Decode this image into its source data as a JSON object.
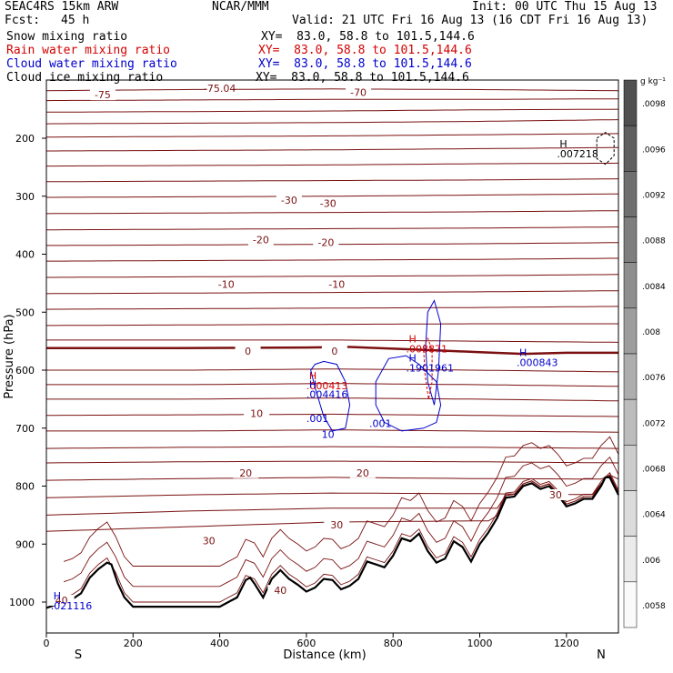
{
  "header": {
    "model": "SEAC4RS 15km ARW",
    "org": "NCAR/MMM",
    "init": "Init: 00 UTC Thu 15 Aug 13",
    "fcst_label": "Fcst:",
    "fcst_value": "45 h",
    "valid": "Valid: 21 UTC Fri 16 Aug 13 (16 CDT Fri 16 Aug 13)"
  },
  "fields": [
    {
      "name": "Snow mixing ratio",
      "xy": "XY=  83.0, 58.8 to 101.5,144.6",
      "color": "#000000"
    },
    {
      "name": "Rain water mixing ratio",
      "xy": "XY=  83.0, 58.8 to 101.5,144.6",
      "color": "#d40000"
    },
    {
      "name": "Cloud water mixing ratio",
      "xy": "XY=  83.0, 58.8 to 101.5,144.6",
      "color": "#0000cc"
    },
    {
      "name": "Cloud ice mixing ratio",
      "xy": "XY=  83.0, 58.8 to 101.5,144.6",
      "color": "#000000"
    }
  ],
  "chart_data": {
    "type": "cross-section",
    "xlabel": "Distance (km)",
    "ylabel": "Pressure (hPa)",
    "xlim": [
      0,
      1320
    ],
    "ylim": [
      1050,
      100
    ],
    "x_ticks": [
      0,
      200,
      400,
      600,
      800,
      1000,
      1200
    ],
    "y_ticks": [
      200,
      300,
      400,
      500,
      600,
      700,
      800,
      900,
      1000
    ],
    "left_endpoint": "S",
    "right_endpoint": "N",
    "colorbar": {
      "unit": "g kg⁻¹",
      "ticks": [
        ".0098",
        ".0096",
        ".0092",
        ".0088",
        ".0084",
        ".008",
        ".0076",
        ".0072",
        ".0068",
        ".0064",
        ".006",
        ".0058"
      ]
    },
    "temperature_contour_labels": [
      {
        "text": "-75",
        "x": 130,
        "p": 128
      },
      {
        "text": "-75.04",
        "x": 400,
        "p": 117
      },
      {
        "text": "-70",
        "x": 720,
        "p": 124
      },
      {
        "text": "-30",
        "x": 560,
        "p": 310
      },
      {
        "text": "-30",
        "x": 650,
        "p": 315
      },
      {
        "text": "-20",
        "x": 495,
        "p": 378
      },
      {
        "text": "-20",
        "x": 645,
        "p": 383
      },
      {
        "text": "-10",
        "x": 415,
        "p": 455
      },
      {
        "text": "-10",
        "x": 670,
        "p": 455
      },
      {
        "text": "0",
        "x": 465,
        "p": 570
      },
      {
        "text": "0",
        "x": 665,
        "p": 570
      },
      {
        "text": "10",
        "x": 485,
        "p": 678
      },
      {
        "text": "20",
        "x": 460,
        "p": 780
      },
      {
        "text": "20",
        "x": 730,
        "p": 780
      },
      {
        "text": "30",
        "x": 375,
        "p": 897
      },
      {
        "text": "30",
        "x": 670,
        "p": 870
      },
      {
        "text": "30",
        "x": 1175,
        "p": 818
      },
      {
        "text": "40",
        "x": 540,
        "p": 983
      },
      {
        "text": "40",
        "x": 35,
        "p": 1000
      }
    ],
    "max_markers": [
      {
        "label": "H",
        "value": ".007218",
        "x": 1178,
        "p": 228,
        "color": "#000000"
      },
      {
        "label": "H",
        "value": ".008871",
        "x": 830,
        "p": 565,
        "color": "#d40000"
      },
      {
        "label": "H",
        "value": ".1901961",
        "x": 830,
        "p": 598,
        "color": "#0000cc"
      },
      {
        "label": "H",
        "value": ".000843",
        "x": 1085,
        "p": 588,
        "color": "#0000cc"
      },
      {
        "label": "H",
        "value": ".000413",
        "x": 600,
        "p": 628,
        "color": "#d40000"
      },
      {
        "label": "H",
        "value": ".004416",
        "x": 600,
        "p": 643,
        "color": "#0000cc"
      },
      {
        "label": "H",
        "value": ".021116",
        "x": 10,
        "p": 1008,
        "color": "#0000cc"
      },
      {
        "label": "",
        "value": ".001",
        "x": 600,
        "p": 685,
        "color": "#0000cc"
      },
      {
        "label": "",
        "value": ".001",
        "x": 745,
        "p": 693,
        "color": "#0000cc"
      },
      {
        "label": "",
        "value": "10",
        "x": 635,
        "p": 712,
        "color": "#0000cc"
      }
    ],
    "terrain": {
      "x": [
        0,
        20,
        40,
        60,
        80,
        100,
        120,
        140,
        150,
        165,
        180,
        200,
        220,
        260,
        300,
        340,
        360,
        380,
        400,
        420,
        440,
        460,
        470,
        480,
        500,
        520,
        540,
        560,
        580,
        600,
        620,
        640,
        660,
        680,
        700,
        720,
        740,
        760,
        780,
        800,
        820,
        840,
        860,
        880,
        900,
        920,
        940,
        960,
        980,
        1000,
        1020,
        1040,
        1060,
        1080,
        1100,
        1120,
        1140,
        1160,
        1180,
        1200,
        1220,
        1240,
        1260,
        1280,
        1290,
        1300,
        1310,
        1320
      ],
      "p": [
        1010,
        1005,
        1000,
        995,
        985,
        958,
        943,
        932,
        935,
        968,
        992,
        1008,
        1008,
        1008,
        1008,
        1008,
        1008,
        1008,
        1008,
        1000,
        992,
        962,
        958,
        968,
        992,
        960,
        945,
        960,
        970,
        982,
        975,
        960,
        962,
        978,
        972,
        960,
        930,
        935,
        940,
        920,
        890,
        895,
        882,
        912,
        932,
        925,
        895,
        905,
        930,
        900,
        880,
        855,
        820,
        818,
        800,
        795,
        805,
        800,
        815,
        835,
        830,
        822,
        822,
        800,
        785,
        785,
        800,
        815
      ]
    }
  }
}
